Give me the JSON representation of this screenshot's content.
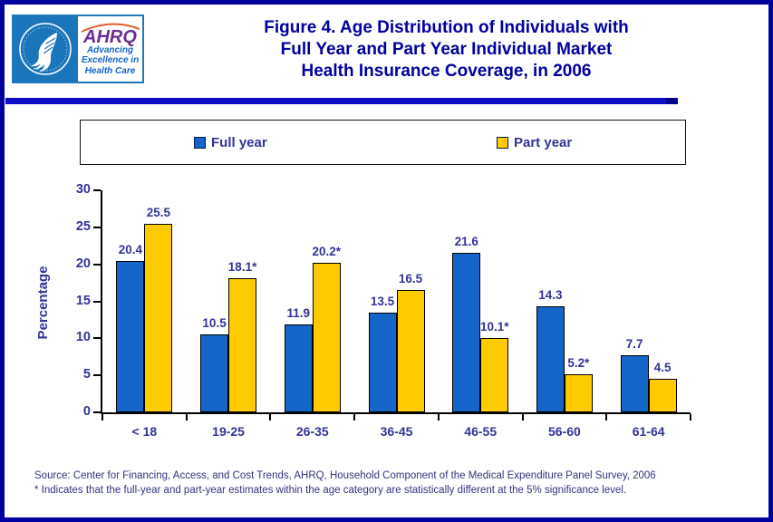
{
  "header": {
    "logo": {
      "ahrq_text": "AHRQ",
      "tagline_lines": [
        "Advancing",
        "Excellence in",
        "Health Care"
      ]
    },
    "title_lines": [
      "Figure 4. Age Distribution of Individuals with",
      "Full Year and Part Year Individual Market",
      "Health Insurance Coverage, in 2006"
    ]
  },
  "legend": {
    "items": [
      {
        "label": "Full year",
        "color": "#1565C8"
      },
      {
        "label": "Part year",
        "color": "#FECB00"
      }
    ]
  },
  "chart_data": {
    "type": "bar",
    "title": "Figure 4. Age Distribution of Individuals with Full Year and Part Year Individual Market Health Insurance Coverage, in 2006",
    "categories": [
      "< 18",
      "19-25",
      "26-35",
      "36-45",
      "46-55",
      "56-60",
      "61-64"
    ],
    "series": [
      {
        "name": "Full year",
        "color": "#1565C8",
        "values": [
          20.4,
          10.5,
          11.9,
          13.5,
          21.6,
          14.3,
          7.7
        ],
        "labels": [
          "20.4",
          "10.5",
          "11.9",
          "13.5",
          "21.6",
          "14.3",
          "7.7"
        ]
      },
      {
        "name": "Part year",
        "color": "#FECB00",
        "values": [
          25.5,
          18.1,
          20.2,
          16.5,
          10.1,
          5.2,
          4.5
        ],
        "labels": [
          "25.5",
          "18.1*",
          "20.2*",
          "16.5",
          "10.1*",
          "5.2*",
          "4.5"
        ]
      }
    ],
    "xlabel": "",
    "ylabel": "Percentage",
    "ylim": [
      0,
      30
    ],
    "yticks": [
      0,
      5,
      10,
      15,
      20,
      25,
      30
    ],
    "grid": false,
    "legend_position": "top"
  },
  "footer": {
    "source_line": "Source: Center for Financing, Access, and Cost Trends, AHRQ, Household Component of the Medical Expenditure Panel Survey, 2006",
    "note_line": "* Indicates that the full-year and part-year estimates within the age category are statistically different at the 5% significance level."
  },
  "colors": {
    "full_year_bar": "#1565C8",
    "part_year_bar": "#FECB00",
    "title_text": "#0000A0",
    "chart_text": "#333399",
    "outer_border": "#0000A0",
    "divider": "#0D0DC8",
    "hhs_blue": "#1B75BB",
    "ahrq_purple": "#6B2E91"
  }
}
